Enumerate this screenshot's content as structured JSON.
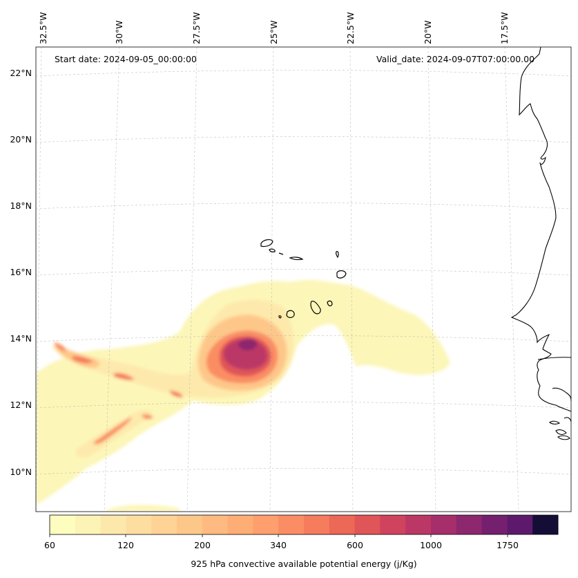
{
  "header": {
    "start_date": "Start date: 2024-09-05_00:00:00",
    "valid_date": "Valid_date: 2024-09-07T07:00:00.00"
  },
  "map": {
    "longitude_labels": [
      "32.5°W",
      "30°W",
      "27.5°W",
      "25°W",
      "22.5°W",
      "20°W",
      "17.5°W"
    ],
    "latitude_labels": [
      "22°N",
      "20°N",
      "18°N",
      "16°N",
      "14°N",
      "12°N",
      "10°N"
    ],
    "gridlines": true,
    "field": "925 hPa convective available potential energy",
    "max_region": "near 25.8°W 13.6°N"
  },
  "colorbar": {
    "label": "925 hPa convective available potential energy (j/Kg)",
    "tick_labels": [
      "60",
      "120",
      "200",
      "340",
      "600",
      "1000",
      "1750"
    ],
    "colors": [
      "#fcfdbf",
      "#fcf3b6",
      "#fde8ab",
      "#fedea0",
      "#fed395",
      "#fec78a",
      "#feba80",
      "#fead75",
      "#fe9f6d",
      "#fb8d64",
      "#f57c5c",
      "#ec6857",
      "#e05558",
      "#cf435e",
      "#bb3766",
      "#a52e6b",
      "#8d276e",
      "#74206f",
      "#5d1a6d",
      "#140e36"
    ]
  }
}
